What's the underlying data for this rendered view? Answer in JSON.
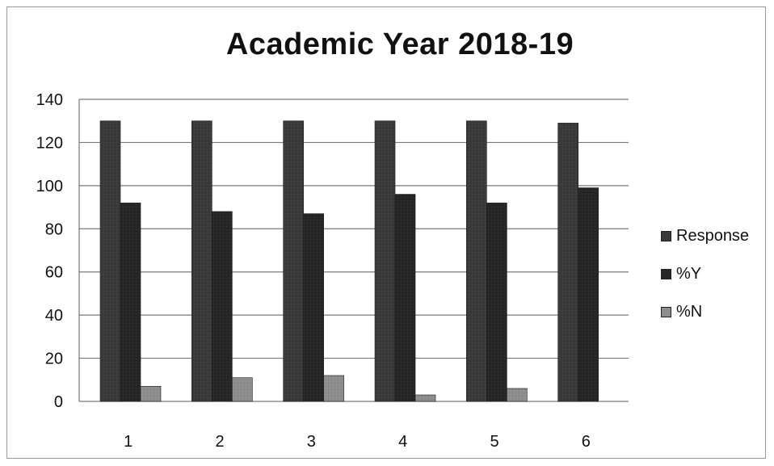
{
  "chart_data": {
    "type": "bar",
    "title": "Academic Year 2018-19",
    "xlabel": "",
    "ylabel": "",
    "ylim": [
      0,
      140
    ],
    "yticks": [
      0,
      20,
      40,
      60,
      80,
      100,
      120,
      140
    ],
    "categories": [
      "1",
      "2",
      "3",
      "4",
      "5",
      "6"
    ],
    "series": [
      {
        "name": "Response",
        "values": [
          130,
          130,
          130,
          130,
          130,
          129
        ]
      },
      {
        "name": "%Y",
        "values": [
          92,
          88,
          87,
          96,
          92,
          99
        ]
      },
      {
        "name": "%N",
        "values": [
          7,
          11,
          12,
          3,
          6,
          0
        ]
      }
    ],
    "grid": true,
    "legend_position": "right"
  },
  "colors": {
    "Response": "#3a3a3a",
    "%Y": "#262626",
    "%N": "#8e8e8e",
    "gridline": "#7a7a7a",
    "axis": "#777777"
  }
}
